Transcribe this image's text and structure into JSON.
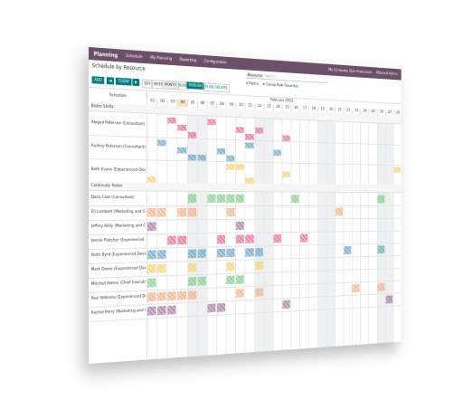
{
  "nav": {
    "app": "Planning",
    "menu": [
      "Schedule",
      "My Planning",
      "Reporting",
      "Configuration"
    ],
    "company": "My Company (San Francisco)",
    "user": "Mitchell Admin"
  },
  "toolbar": {
    "title": "Schedule by Resource",
    "add": "ADD",
    "today": "TODAY",
    "scales": [
      "DAY",
      "WEEK",
      "MONTH",
      "YEAR"
    ],
    "publish": "PUBLISH",
    "plan": "PLAN ORDERS",
    "search_facet": "Resource",
    "search_placeholder": "Search...",
    "filters": [
      "Filters",
      "Group By",
      "Favorites"
    ]
  },
  "gantt": {
    "left_header": "Schedule",
    "month": "February 2022",
    "days": [
      "01",
      "02",
      "03",
      "04",
      "05",
      "06",
      "07",
      "08",
      "09",
      "10",
      "11",
      "12",
      "13",
      "14",
      "15",
      "16",
      "17",
      "18",
      "19",
      "20",
      "21",
      "22",
      "23",
      "24",
      "25",
      "26",
      "27",
      "28"
    ],
    "groups": [
      {
        "name": "Bistro Shifts",
        "resources": [
          "Abigail Peterson (Consultant)",
          "Audrey Peterson (Consultant)",
          "Beth Evans (Experienced Developer)"
        ]
      },
      {
        "name": "Continuity Tester",
        "resources": [
          "Doris Cole (Consultant)",
          "Eli Lambert (Marketing and Community Manager)",
          "Jeffrey Kelly (Marketing and Community Manager)",
          "Jennie Fletcher (Experienced Developer)",
          "Keith Byrd (Experienced Developer)",
          "Mark Demo (Experienced Developer)",
          "Mitchell Admin (Chief Executive Officer)",
          "Paul Williams (Experienced Developer)",
          "Rachel Perry (Marketing and Community Manager)"
        ]
      }
    ]
  }
}
